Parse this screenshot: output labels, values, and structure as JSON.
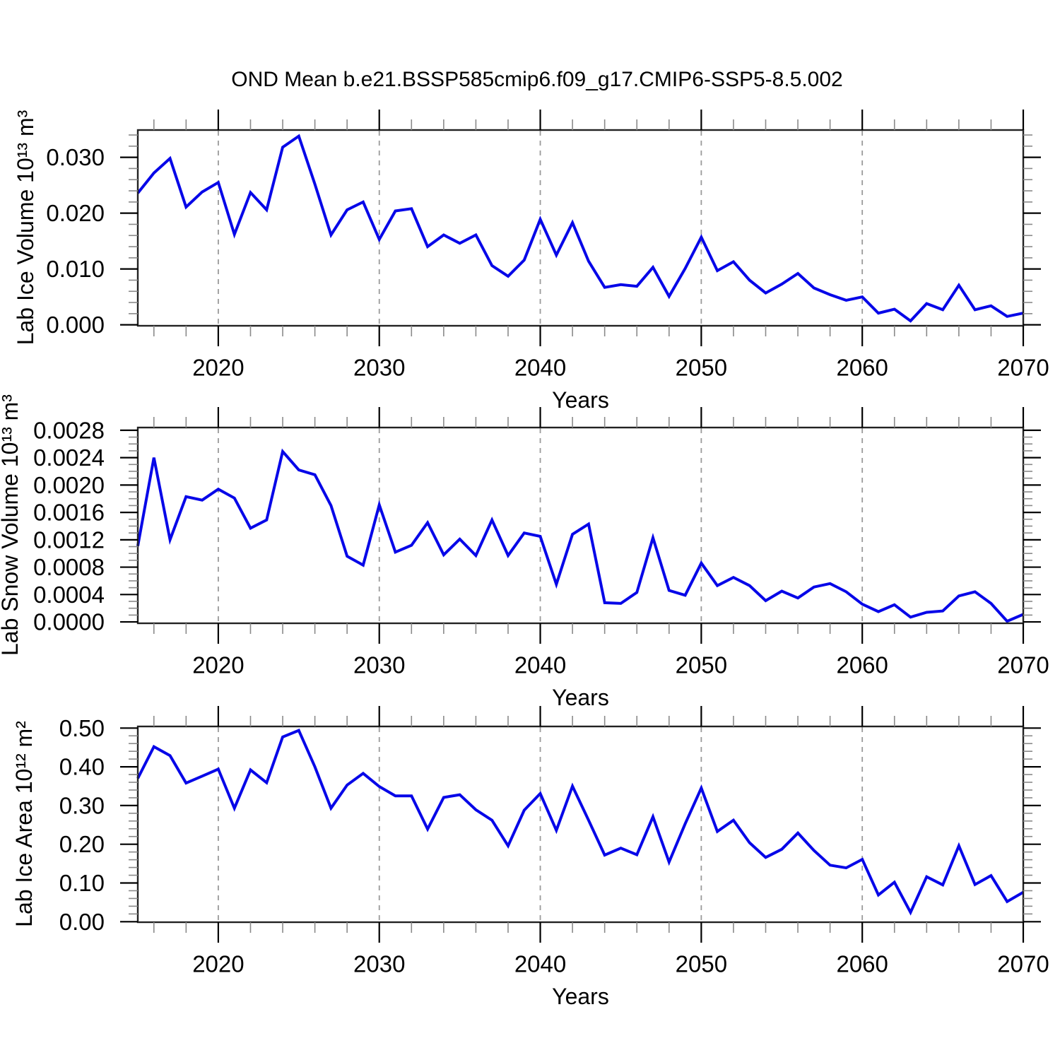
{
  "figure": {
    "title": "OND Mean b.e21.BSSP585cmip6.f09_g17.CMIP6-SSP5-8.5.002",
    "background": "#ffffff",
    "line_color": "#0707e8",
    "grid_color": "#9a9a9a",
    "frame_color": "#222222",
    "tick_color": "#000000",
    "minor_tick_color": "#8a8a8a"
  },
  "x_axis": {
    "label": "Years",
    "start": 2015,
    "end": 2070,
    "step": 1,
    "major_ticks": [
      2020,
      2030,
      2040,
      2050,
      2060,
      2070
    ],
    "minor_step": 2,
    "gridline_years": [
      2020,
      2030,
      2040,
      2050,
      2060
    ]
  },
  "chart_data": [
    {
      "type": "line",
      "name": "lab-ice-volume",
      "ylabel": "Lab Ice Volume 10¹³ m³",
      "xlabel": "Years",
      "x_start": 2015,
      "x_end": 2070,
      "ylim": [
        -0.00017,
        0.03489
      ],
      "ytick_values": [
        0.0,
        0.01,
        0.02,
        0.03
      ],
      "ytick_labels": [
        "0.000",
        "0.010",
        "0.020",
        "0.030"
      ],
      "ytick_step": 0.01,
      "yminor_step": 0.002,
      "grid": "vertical-dashed",
      "values": [
        0.0236,
        0.0272,
        0.0298,
        0.0211,
        0.0238,
        0.0255,
        0.0162,
        0.0237,
        0.0206,
        0.0318,
        0.0338,
        0.0252,
        0.0161,
        0.0206,
        0.022,
        0.0153,
        0.0204,
        0.0208,
        0.014,
        0.0161,
        0.0146,
        0.0161,
        0.0106,
        0.0087,
        0.0116,
        0.0189,
        0.0125,
        0.0183,
        0.0114,
        0.0067,
        0.0072,
        0.0069,
        0.0103,
        0.0051,
        0.0101,
        0.0157,
        0.0097,
        0.0113,
        0.008,
        0.0057,
        0.0073,
        0.0092,
        0.0066,
        0.0054,
        0.0044,
        0.005,
        0.0021,
        0.0028,
        0.0007,
        0.0038,
        0.0027,
        0.0071,
        0.0027,
        0.0034,
        0.0015,
        0.0021
      ]
    },
    {
      "type": "line",
      "name": "lab-snow-volume",
      "ylabel": "Lab Snow Volume 10¹³ m³",
      "xlabel": "Years",
      "x_start": 2015,
      "x_end": 2070,
      "ylim": [
        -2e-05,
        0.00284
      ],
      "ytick_values": [
        0.0,
        0.0004,
        0.0008,
        0.0012,
        0.0016,
        0.002,
        0.0024,
        0.0028
      ],
      "ytick_labels": [
        "0.0000",
        "0.0004",
        "0.0008",
        "0.0012",
        "0.0016",
        "0.0020",
        "0.0024",
        "0.0028"
      ],
      "ytick_step": 0.0004,
      "yminor_step": 0.0001,
      "grid": "vertical-dashed",
      "values": [
        0.00111,
        0.0024,
        0.0012,
        0.00183,
        0.00178,
        0.00194,
        0.00181,
        0.00137,
        0.00149,
        0.00249,
        0.00222,
        0.00215,
        0.0017,
        0.00096,
        0.00083,
        0.00171,
        0.00102,
        0.00112,
        0.00145,
        0.00098,
        0.00121,
        0.00097,
        0.00149,
        0.00097,
        0.0013,
        0.00125,
        0.00055,
        0.00128,
        0.00143,
        0.00028,
        0.00027,
        0.00043,
        0.00123,
        0.00046,
        0.00039,
        0.00086,
        0.00053,
        0.00065,
        0.00053,
        0.00031,
        0.00045,
        0.00035,
        0.00051,
        0.00056,
        0.00044,
        0.00026,
        0.00015,
        0.00025,
        7e-05,
        0.00014,
        0.00016,
        0.00038,
        0.00044,
        0.00027,
        1e-05,
        0.00011
      ]
    },
    {
      "type": "line",
      "name": "lab-ice-area",
      "ylabel": "Lab Ice Area 10¹² m²",
      "xlabel": "Years",
      "x_start": 2015,
      "x_end": 2070,
      "ylim": [
        -0.0013,
        0.5042
      ],
      "ytick_values": [
        0.0,
        0.1,
        0.2,
        0.3,
        0.4,
        0.5
      ],
      "ytick_labels": [
        "0.00",
        "0.10",
        "0.20",
        "0.30",
        "0.40",
        "0.50"
      ],
      "ytick_step": 0.1,
      "yminor_step": 0.02,
      "grid": "vertical-dashed",
      "values": [
        0.37,
        0.452,
        0.429,
        0.358,
        0.376,
        0.394,
        0.293,
        0.392,
        0.359,
        0.477,
        0.494,
        0.4,
        0.293,
        0.353,
        0.383,
        0.349,
        0.325,
        0.325,
        0.239,
        0.321,
        0.328,
        0.289,
        0.262,
        0.196,
        0.288,
        0.331,
        0.236,
        0.35,
        0.262,
        0.172,
        0.19,
        0.173,
        0.271,
        0.154,
        0.253,
        0.345,
        0.233,
        0.262,
        0.204,
        0.166,
        0.187,
        0.229,
        0.184,
        0.146,
        0.139,
        0.161,
        0.069,
        0.102,
        0.024,
        0.116,
        0.095,
        0.196,
        0.096,
        0.119,
        0.052,
        0.076
      ]
    }
  ]
}
